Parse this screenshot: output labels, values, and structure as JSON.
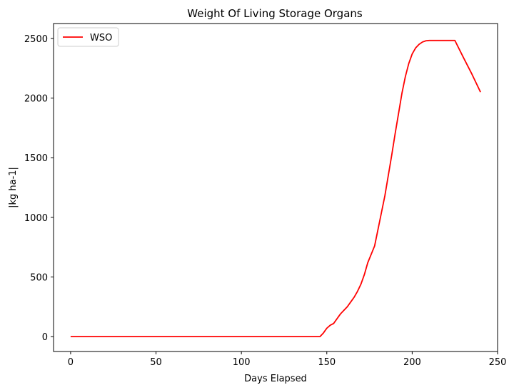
{
  "chart_data": {
    "type": "line",
    "title": "Weight Of Living Storage Organs",
    "xlabel": "Days Elapsed",
    "ylabel": "|kg ha-1|",
    "xlim": [
      -10,
      250
    ],
    "ylim": [
      -125,
      2625
    ],
    "xticks": [
      0,
      50,
      100,
      150,
      200,
      250
    ],
    "yticks": [
      0,
      500,
      1000,
      1500,
      2000,
      2500
    ],
    "grid": false,
    "legend_position": "top-left",
    "series": [
      {
        "name": "WSO",
        "color": "#ff0000",
        "x": [
          0,
          50,
          100,
          146,
          148,
          150,
          152,
          154,
          156,
          158,
          160,
          162,
          164,
          166,
          168,
          170,
          172,
          174,
          176,
          178,
          180,
          182,
          184,
          186,
          188,
          190,
          192,
          194,
          196,
          198,
          200,
          202,
          204,
          206,
          208,
          210,
          212,
          215,
          220,
          225,
          230,
          235,
          240
        ],
        "y": [
          0,
          0,
          0,
          0,
          30,
          70,
          95,
          110,
          150,
          190,
          220,
          250,
          290,
          330,
          380,
          440,
          520,
          620,
          690,
          760,
          900,
          1040,
          1180,
          1350,
          1520,
          1700,
          1870,
          2040,
          2180,
          2290,
          2370,
          2420,
          2450,
          2470,
          2480,
          2483,
          2483,
          2483,
          2483,
          2483,
          2340,
          2200,
          2050
        ]
      }
    ]
  }
}
